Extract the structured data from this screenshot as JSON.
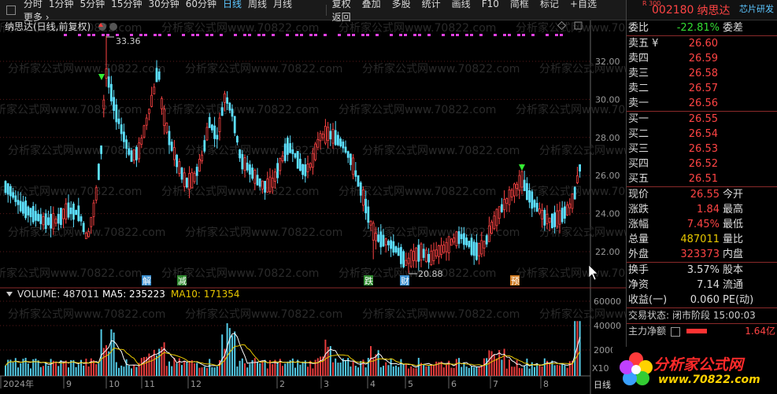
{
  "toolbar": {
    "periods": [
      "分时",
      "1分钟",
      "5分钟",
      "15分钟",
      "30分钟",
      "60分钟",
      "日线",
      "周线",
      "月线",
      "更多 ›"
    ],
    "active_period": "日线",
    "tools": [
      "复权",
      "叠加",
      "多股",
      "统计",
      "画线",
      "F10",
      "简框",
      "标记",
      "+自选",
      "返回"
    ]
  },
  "stock": {
    "badge": "R 300",
    "code": "002180",
    "name": "纳思达",
    "concept": "芯片研发"
  },
  "chart": {
    "title": "纳思达(日线,前复权)",
    "high_label": "33.36",
    "low_label": "20.88",
    "price_ticks": [
      "32.00",
      "30.00",
      "28.00",
      "26.00",
      "24.00",
      "22.00"
    ],
    "volume_ticks": [
      "60000",
      "40000",
      "20000"
    ],
    "volume_multiplier": "X10",
    "volume_legend": {
      "volume": "VOLUME: 487011",
      "ma5": "MA5: 235223",
      "ma10": "MA10: 171354"
    },
    "month_labels": [
      "2024年",
      "9",
      "10",
      "11",
      "12",
      "2",
      "3",
      "4",
      "5",
      "6",
      "7",
      "8"
    ],
    "event_labels": [
      "解",
      "减",
      "跌",
      "财",
      "预"
    ],
    "watermark": "分析家公式网www.70822.com"
  },
  "quote": {
    "wei_bi_label": "委比",
    "wei_bi_value": "-22.81%",
    "wei_cha_label": "委差",
    "sell": [
      {
        "label": "卖五 ¥",
        "price": "26.60"
      },
      {
        "label": "卖四",
        "price": "26.59"
      },
      {
        "label": "卖三",
        "price": "26.58"
      },
      {
        "label": "卖二",
        "price": "26.57"
      },
      {
        "label": "卖一",
        "price": "26.56"
      }
    ],
    "buy": [
      {
        "label": "买一",
        "price": "26.55"
      },
      {
        "label": "买二",
        "price": "26.54"
      },
      {
        "label": "买三",
        "price": "26.53"
      },
      {
        "label": "买四",
        "price": "26.52"
      },
      {
        "label": "买五",
        "price": "26.51"
      }
    ],
    "stats": [
      {
        "label": "现价",
        "value": "26.55",
        "label2": "今开",
        "color": "red"
      },
      {
        "label": "涨跌",
        "value": "1.84",
        "label2": "最高",
        "color": "red"
      },
      {
        "label": "涨幅",
        "value": "7.45%",
        "label2": "最低",
        "color": "red"
      },
      {
        "label": "总量",
        "value": "487011",
        "label2": "量比",
        "color": "yellow"
      },
      {
        "label": "外盘",
        "value": "323373",
        "label2": "内盘",
        "color": "red"
      }
    ],
    "stats2": [
      {
        "label": "换手",
        "value": "3.57%",
        "label2": "股本"
      },
      {
        "label": "净资",
        "value": "7.14",
        "label2": "流通"
      },
      {
        "label": "收益(一)",
        "value": "0.060",
        "label2": "PE(动)"
      }
    ],
    "trade_status_label": "交易状态:",
    "trade_status_value": "闭市阶段 15:00:03",
    "main_flow_label": "主力净额",
    "main_flow_value": "1.64亿",
    "tab_label": "日线"
  },
  "logo": {
    "name": "分析家公式网",
    "url": "www.70822.com"
  },
  "colors": {
    "up": "#ff4444",
    "down": "#5ce0ff",
    "ma5": "#ffffff",
    "ma10": "#e8c800",
    "dots": "#e040e0"
  }
}
